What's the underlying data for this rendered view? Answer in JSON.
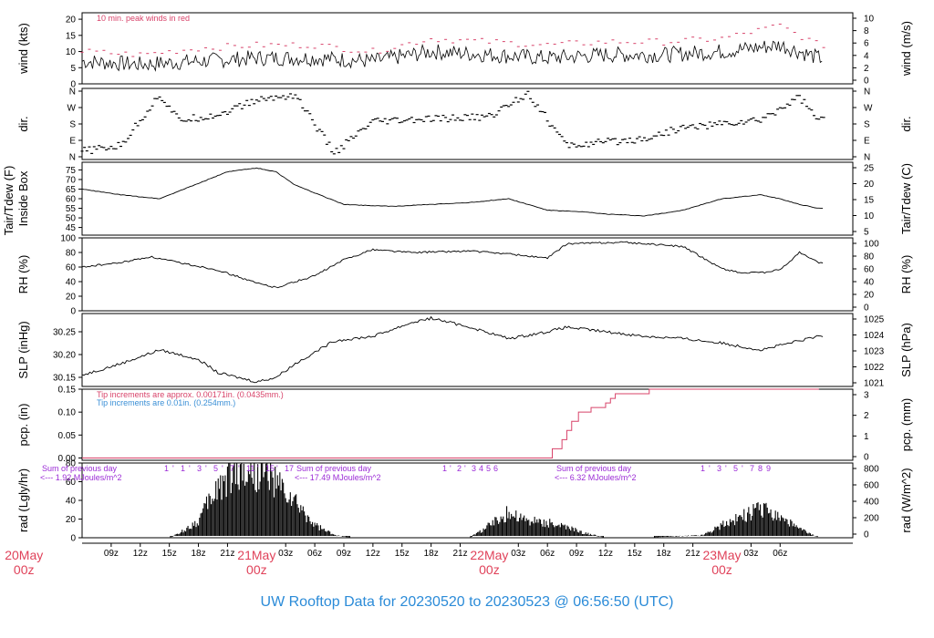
{
  "footer": "UW Rooftop Data for 20230520  to  20230523 @ 06:56:50  (UTC)",
  "colors": {
    "ink": "#000000",
    "red": "#d8436a",
    "blue": "#3a8fd6",
    "purple": "#9b2bd6",
    "daylabel": "#e0425a",
    "footer": "#2b8bd8"
  },
  "chart_data": [
    {
      "type": "line",
      "panel": "wind",
      "ylabel": "wind (kts)",
      "ylabel_right": "wind (m/s)",
      "ylim": [
        0,
        22
      ],
      "yticks": [
        "0",
        "5",
        "10",
        "15",
        "20"
      ],
      "yticks_right": [
        "0",
        "2",
        "4",
        "6",
        "8",
        "10"
      ],
      "annotation": "10 min. peak winds in red",
      "series": [
        {
          "name": "wind",
          "color": "#000000",
          "x_hours": [
            0,
            6,
            12,
            18,
            24,
            30,
            36,
            42,
            48,
            54,
            60,
            66,
            72,
            76
          ],
          "values": [
            7,
            6,
            7,
            8,
            8,
            7,
            10,
            9,
            8,
            9,
            9,
            10,
            12,
            8
          ]
        },
        {
          "name": "peak",
          "color": "#d8436a",
          "x_hours": [
            0,
            6,
            12,
            18,
            24,
            30,
            36,
            42,
            48,
            54,
            60,
            66,
            72,
            76
          ],
          "values": [
            10,
            9,
            11,
            12,
            12,
            10,
            14,
            13,
            12,
            13,
            13,
            14,
            18,
            12
          ]
        }
      ]
    },
    {
      "type": "scatter",
      "panel": "dir",
      "ylabel": "dir.",
      "ylabel_right": "dir.",
      "yticks": [
        "N",
        "E",
        "S",
        "W",
        "N"
      ],
      "yticks_right": [
        "N",
        "E",
        "S",
        "W",
        "N"
      ],
      "series": [
        {
          "name": "dir",
          "color": "#000000",
          "x_hours": [
            0,
            4,
            8,
            10,
            14,
            18,
            22,
            26,
            30,
            34,
            38,
            42,
            46,
            50,
            54,
            58,
            62,
            66,
            70,
            74,
            76
          ],
          "values_deg": [
            30,
            60,
            340,
            200,
            230,
            310,
            340,
            20,
            190,
            200,
            210,
            220,
            350,
            60,
            80,
            100,
            160,
            180,
            200,
            330,
            200
          ]
        }
      ]
    },
    {
      "type": "line",
      "panel": "temp",
      "ylabel": "Inside Box",
      "ylabel_outer": "Tair/Tdew (F)",
      "ylabel_right": "Tair/Tdew (C)",
      "ylim": [
        41,
        79
      ],
      "yticks": [
        "45",
        "50",
        "55",
        "60",
        "65",
        "70",
        "75"
      ],
      "yticks_right": [
        "5",
        "10",
        "15",
        "20",
        "25"
      ],
      "series": [
        {
          "name": "Tair",
          "color": "#000000",
          "x_hours": [
            0,
            4,
            8,
            12,
            15,
            18,
            20,
            22,
            27,
            32,
            40,
            44,
            48,
            52,
            54,
            58,
            62,
            66,
            70,
            72,
            74,
            76
          ],
          "values": [
            65,
            62,
            60,
            68,
            74,
            76,
            74,
            67,
            57,
            56,
            58,
            60,
            54,
            53,
            52,
            51,
            54,
            60,
            62,
            60,
            57,
            55
          ]
        }
      ]
    },
    {
      "type": "line",
      "panel": "rh",
      "ylabel": "RH (%)",
      "ylabel_right": "RH (%)",
      "ylim": [
        0,
        100
      ],
      "yticks": [
        "0",
        "20",
        "40",
        "60",
        "80",
        "100"
      ],
      "yticks_right": [
        "0",
        "20",
        "40",
        "60",
        "80",
        "100"
      ],
      "series": [
        {
          "name": "RH",
          "color": "#000000",
          "x_hours": [
            0,
            4,
            7,
            10,
            14,
            18,
            20,
            24,
            27,
            30,
            34,
            40,
            44,
            48,
            50,
            56,
            60,
            62,
            66,
            68,
            70,
            72,
            74,
            76
          ],
          "values": [
            60,
            66,
            74,
            66,
            56,
            38,
            32,
            48,
            70,
            84,
            80,
            82,
            78,
            72,
            92,
            94,
            90,
            88,
            58,
            52,
            52,
            56,
            80,
            66
          ]
        }
      ]
    },
    {
      "type": "line",
      "panel": "slp",
      "ylabel": "SLP (inHg)",
      "ylabel_right": "SLP (hPa)",
      "ylim": [
        30.13,
        30.29
      ],
      "yticks": [
        "30.15",
        "30.20",
        "30.25"
      ],
      "yticks_right": [
        "1021",
        "1022",
        "1023",
        "1024",
        "1025"
      ],
      "series": [
        {
          "name": "SLP",
          "color": "#000000",
          "x_hours": [
            0,
            4,
            8,
            12,
            14,
            18,
            20,
            22,
            26,
            30,
            34,
            36,
            40,
            44,
            48,
            50,
            54,
            58,
            62,
            66,
            70,
            74,
            76
          ],
          "values": [
            30.155,
            30.18,
            30.21,
            30.19,
            30.16,
            30.14,
            30.15,
            30.18,
            30.23,
            30.24,
            30.27,
            30.28,
            30.26,
            30.235,
            30.25,
            30.26,
            30.25,
            30.24,
            30.235,
            30.225,
            30.21,
            30.23,
            30.24
          ]
        }
      ]
    },
    {
      "type": "line",
      "panel": "pcp",
      "ylabel": "pcp. (in)",
      "ylabel_right": "pcp. (mm)",
      "ylim": [
        -0.005,
        0.15
      ],
      "yticks": [
        "0.00",
        "0.05",
        "0.10",
        "0.15"
      ],
      "yticks_right": [
        "0",
        "1",
        "2",
        "3"
      ],
      "notes": [
        "Tip increments are approx. 0.00171in. (0.0435mm.)",
        "Tip increments are 0.01in. (0.254mm.)"
      ],
      "series": [
        {
          "name": "pcp",
          "color": "#d8436a",
          "x_hours": [
            0,
            47.5,
            48.5,
            49.5,
            50,
            50.5,
            51.2,
            51.8,
            52.5,
            53.2,
            54,
            54.5,
            55,
            55.5,
            58,
            58.5,
            76
          ],
          "values": [
            0,
            0,
            0.02,
            0.04,
            0.06,
            0.08,
            0.1,
            0.1,
            0.11,
            0.11,
            0.12,
            0.13,
            0.14,
            0.14,
            0.14,
            0.15,
            0.15
          ]
        }
      ]
    },
    {
      "type": "area",
      "panel": "rad",
      "ylabel": "rad (Lgly/hr)",
      "ylabel_right": "rad (W/m^2)",
      "ylim": [
        0,
        80
      ],
      "yticks": [
        "0",
        "20",
        "40",
        "60",
        "80"
      ],
      "yticks_right": [
        "0",
        "200",
        "400",
        "600",
        "800"
      ],
      "annotations": [
        "Sum of previous day",
        "<--- 1.92 MJoules/m^2",
        "Sum of previous day",
        "<--- 17.49 MJoules/m^2",
        "Sum of previous day",
        "<--- 6.32 MJoules/m^2"
      ],
      "day_marks": [
        [
          "1",
          "'",
          "1",
          "'",
          "3",
          "'",
          "5",
          "'",
          "7",
          "'",
          "11",
          "'",
          "15",
          "'",
          "17"
        ],
        [
          "1",
          "'",
          "2",
          "'",
          "3",
          "4",
          "5",
          "6"
        ],
        [
          "1",
          "'",
          "3",
          "'",
          "5",
          "'",
          "7",
          "8",
          "9"
        ]
      ],
      "series": [
        {
          "name": "rad",
          "color": "#000000",
          "x_hours": [
            0,
            9,
            10,
            12,
            13,
            14,
            16,
            19,
            22,
            24,
            26,
            28,
            30,
            40,
            42,
            44,
            46,
            48,
            50,
            52,
            54,
            56,
            58,
            64,
            66,
            68,
            70,
            72,
            74,
            76
          ],
          "values": [
            0,
            0,
            5,
            20,
            40,
            60,
            80,
            75,
            40,
            15,
            3,
            0,
            0,
            0,
            15,
            30,
            20,
            18,
            12,
            5,
            0,
            0,
            0,
            3,
            15,
            25,
            35,
            25,
            10,
            0
          ]
        }
      ]
    }
  ],
  "x_axis": {
    "start_label_hour": 6,
    "tick_labels": [
      "09z",
      "12z",
      "15z",
      "18z",
      "21z",
      "03z",
      "06z",
      "09z",
      "12z",
      "15z",
      "18z",
      "21z",
      "03z",
      "06z",
      "09z",
      "12z",
      "15z",
      "18z",
      "21z",
      "03z",
      "06z"
    ],
    "day_labels": [
      {
        "day": "20May",
        "time": "00z"
      },
      {
        "day": "21May",
        "time": "00z"
      },
      {
        "day": "22May",
        "time": "00z"
      },
      {
        "day": "23May",
        "time": "00z"
      }
    ]
  }
}
